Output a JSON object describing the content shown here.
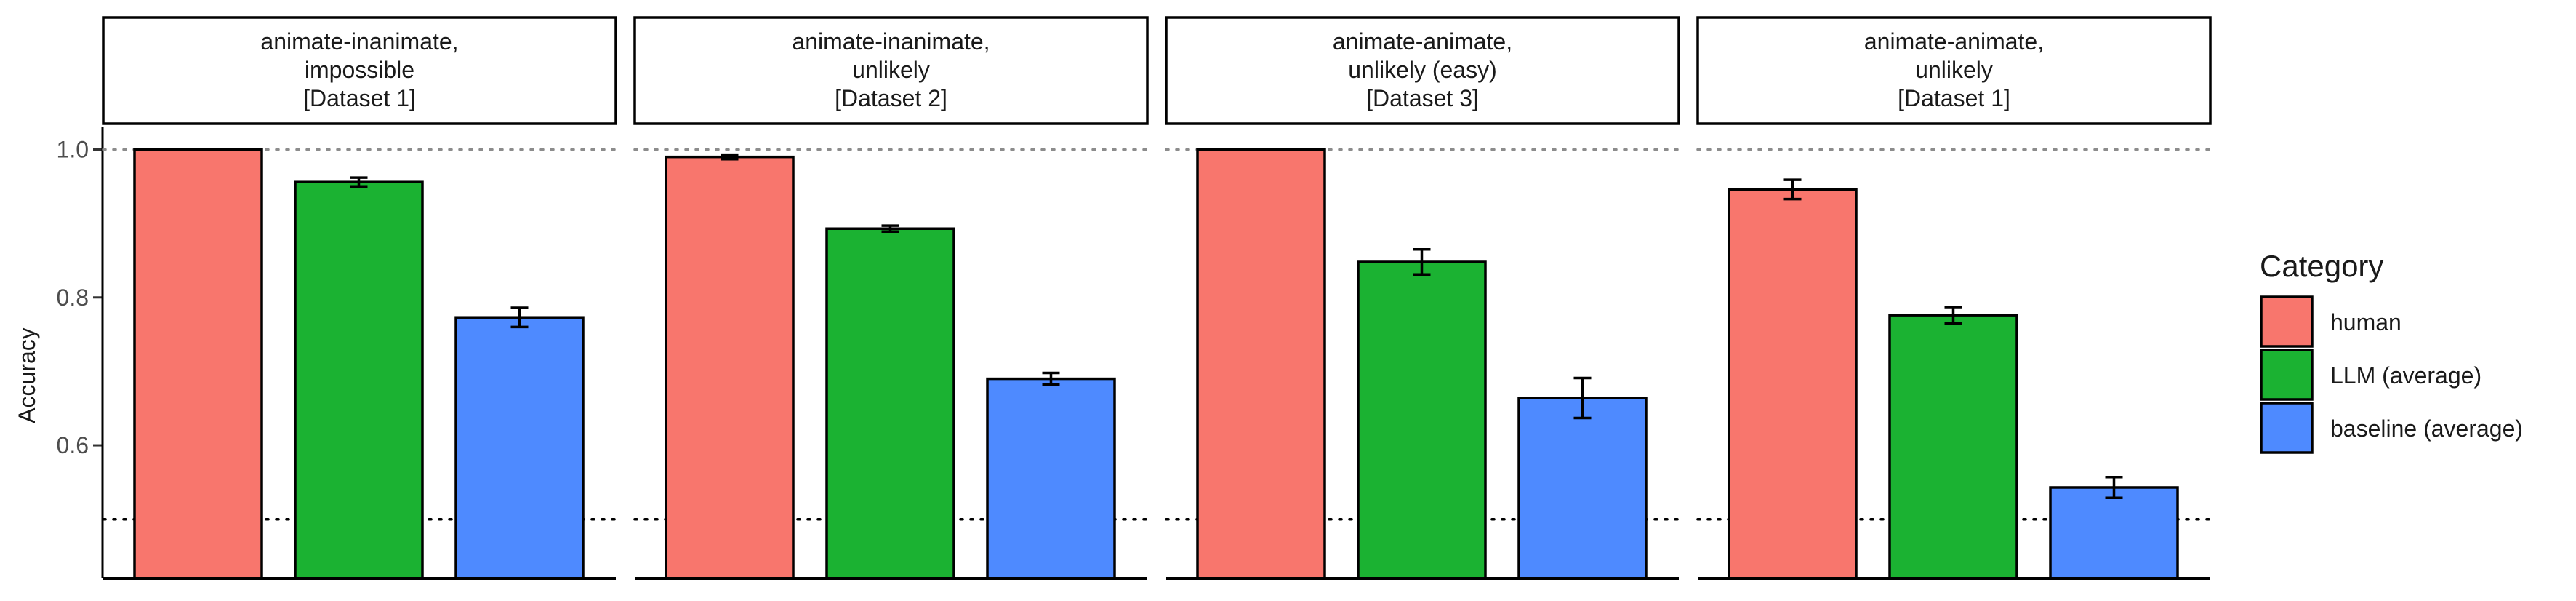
{
  "chart_data": {
    "type": "bar",
    "ylabel": "Accuracy",
    "xlabel": "",
    "ylim": [
      0.42,
      1.03
    ],
    "yticks": [
      "0.6",
      "0.8",
      "1.0"
    ],
    "reference_lines": [
      1.0,
      0.5
    ],
    "legend": {
      "title": "Category",
      "placement": "right",
      "entries": [
        {
          "label": "human",
          "color": "#F8766D"
        },
        {
          "label": "LLM (average)",
          "color": "#1BB232"
        },
        {
          "label": "baseline (average)",
          "color": "#4E8AFF"
        }
      ]
    },
    "categories": [
      "human",
      "LLM (average)",
      "baseline (average)"
    ],
    "panels": [
      {
        "title_lines": [
          "animate-inanimate,",
          "impossible",
          "[Dataset 1]"
        ],
        "values": [
          1.0,
          0.956,
          0.773
        ],
        "errors": [
          0.0,
          0.006,
          0.013
        ]
      },
      {
        "title_lines": [
          "animate-inanimate,",
          "unlikely",
          "[Dataset 2]"
        ],
        "values": [
          0.99,
          0.893,
          0.69
        ],
        "errors": [
          0.003,
          0.004,
          0.008
        ]
      },
      {
        "title_lines": [
          "animate-animate,",
          "unlikely (easy)",
          "[Dataset 3]"
        ],
        "values": [
          1.0,
          0.848,
          0.664
        ],
        "errors": [
          0.0,
          0.017,
          0.027
        ]
      },
      {
        "title_lines": [
          "animate-animate,",
          "unlikely",
          "[Dataset 1]"
        ],
        "values": [
          0.946,
          0.776,
          0.543
        ],
        "errors": [
          0.013,
          0.011,
          0.014
        ]
      }
    ]
  }
}
